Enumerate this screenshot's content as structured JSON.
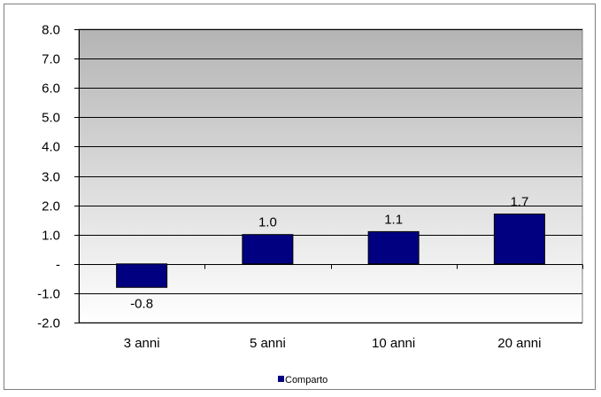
{
  "chart_data": {
    "type": "bar",
    "categories": [
      "3 anni",
      "5 anni",
      "10 anni",
      "20 anni"
    ],
    "series": [
      {
        "name": "Comparto",
        "values": [
          -0.8,
          1.0,
          1.1,
          1.7
        ],
        "color": "#000080"
      }
    ],
    "data_labels": [
      "-0.8",
      "1.0",
      "1.1",
      "1.7"
    ],
    "ylim": [
      -2.0,
      8.0
    ],
    "yticks": [
      8.0,
      7.0,
      6.0,
      5.0,
      4.0,
      3.0,
      2.0,
      1.0,
      0.0,
      -1.0,
      -2.0
    ],
    "ytick_labels": [
      "8.0",
      "7.0",
      "6.0",
      "5.0",
      "4.0",
      "3.0",
      "2.0",
      "1.0",
      "-",
      "-1.0",
      "-2.0"
    ],
    "grid": true,
    "legend": {
      "position": "bottom",
      "entries": [
        "Comparto"
      ]
    },
    "title": "",
    "xlabel": "",
    "ylabel": "",
    "colors": {
      "plot_gradient_top": "#b4b4b4",
      "plot_gradient_bottom": "#ffffff",
      "bar": "#000080"
    }
  }
}
